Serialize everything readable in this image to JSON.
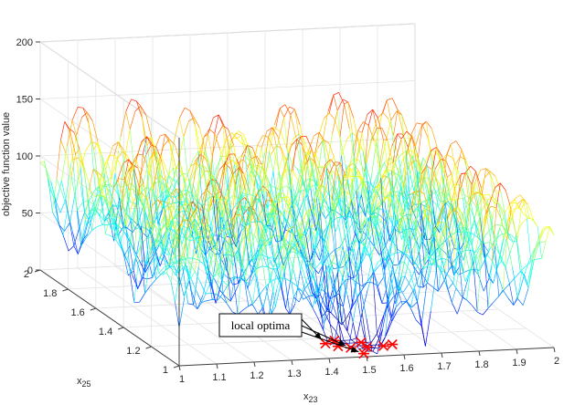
{
  "chart_data": {
    "type": "surface",
    "zlabel": "objective function value",
    "xlabel_base": "x",
    "xlabel_sub": "23",
    "ylabel_base": "x",
    "ylabel_sub": "25",
    "xlim": [
      1,
      2
    ],
    "ylim": [
      1,
      2
    ],
    "zlim": [
      0,
      200
    ],
    "x_ticks": [
      "1",
      "1.1",
      "1.2",
      "1.3",
      "1.4",
      "1.5",
      "1.6",
      "1.7",
      "1.8",
      "1.9",
      "2"
    ],
    "y_ticks": [
      "1",
      "1.2",
      "1.4",
      "1.6",
      "1.8",
      "2"
    ],
    "z_ticks": [
      "0",
      "50",
      "100",
      "150",
      "200"
    ],
    "grid": true,
    "colormap": "jet",
    "annotation": {
      "text": "local optima"
    },
    "local_optima_marker_color": "#ff0000"
  }
}
